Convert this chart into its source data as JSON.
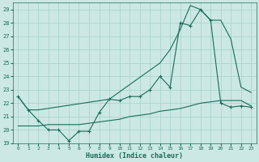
{
  "xlabel": "Humidex (Indice chaleur)",
  "bg_color": "#cce8e4",
  "grid_color": "#aad4cf",
  "line_color": "#1a6b5a",
  "line1_x": [
    0,
    1,
    2,
    3,
    4,
    5,
    6,
    7,
    8,
    9,
    10,
    11,
    12,
    13,
    14,
    15,
    16,
    17,
    18,
    19,
    20,
    21,
    22,
    23
  ],
  "line1_y": [
    22.5,
    21.5,
    20.7,
    20.0,
    20.0,
    19.2,
    19.9,
    19.9,
    21.3,
    22.3,
    22.2,
    22.5,
    22.5,
    23.0,
    24.0,
    23.2,
    28.0,
    27.8,
    29.0,
    28.2,
    22.0,
    21.7,
    21.8,
    21.7
  ],
  "line2_x": [
    0,
    1,
    2,
    3,
    4,
    5,
    6,
    7,
    8,
    9,
    10,
    11,
    12,
    13,
    14,
    15,
    16,
    17,
    18,
    19,
    20,
    21,
    22,
    23
  ],
  "line2_y": [
    20.3,
    20.3,
    20.3,
    20.4,
    20.4,
    20.4,
    20.4,
    20.5,
    20.6,
    20.7,
    20.8,
    21.0,
    21.1,
    21.2,
    21.4,
    21.5,
    21.6,
    21.8,
    22.0,
    22.1,
    22.2,
    22.2,
    22.2,
    21.8
  ],
  "line3_x": [
    0,
    1,
    2,
    9,
    14,
    15,
    16,
    17,
    18,
    19,
    20,
    21,
    22,
    23
  ],
  "line3_y": [
    22.5,
    21.5,
    21.5,
    22.3,
    25.0,
    26.0,
    27.5,
    29.3,
    29.0,
    28.2,
    28.2,
    26.8,
    23.2,
    22.8
  ],
  "ylim": [
    19,
    29.5
  ],
  "xlim": [
    -0.5,
    23.5
  ],
  "yticks": [
    19,
    20,
    21,
    22,
    23,
    24,
    25,
    26,
    27,
    28,
    29
  ],
  "xticks": [
    0,
    1,
    2,
    3,
    4,
    5,
    6,
    7,
    8,
    9,
    10,
    11,
    12,
    13,
    14,
    15,
    16,
    17,
    18,
    19,
    20,
    21,
    22,
    23
  ],
  "xtick_labels": [
    "0",
    "1",
    "2",
    "3",
    "4",
    "5",
    "6",
    "7",
    "8",
    "9",
    "10",
    "11",
    "12",
    "13",
    "14",
    "15",
    "16",
    "17",
    "18",
    "19",
    "20",
    "21",
    "22",
    "23"
  ]
}
